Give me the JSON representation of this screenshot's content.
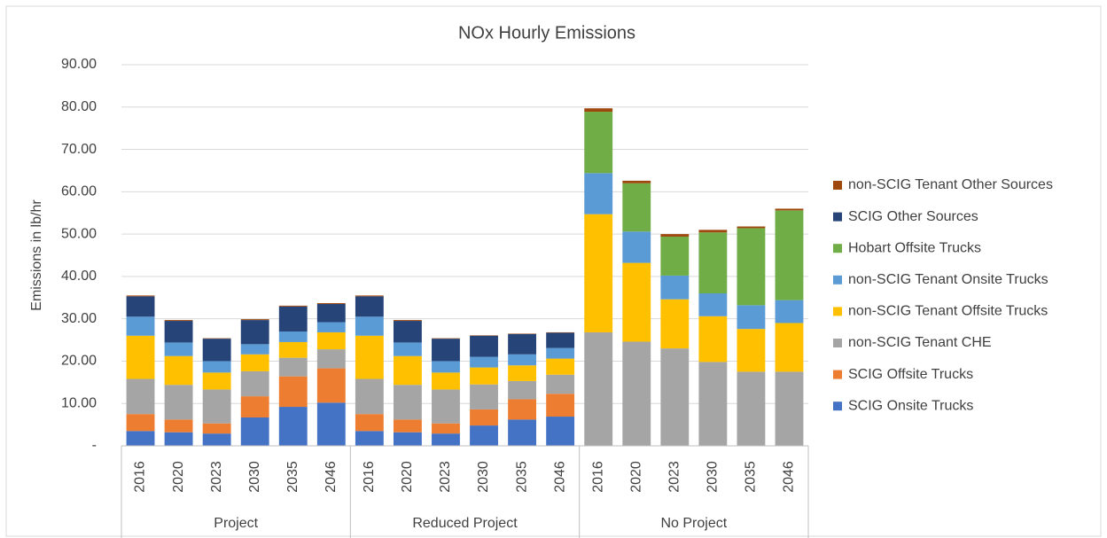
{
  "chart_data": {
    "type": "stacked_bar",
    "title": "NOx Hourly Emissions",
    "y_label": "Emissions in lb/hr",
    "categories": [
      "2016",
      "2020",
      "2023",
      "2030",
      "2035",
      "2046",
      "2016",
      "2020",
      "2023",
      "2030",
      "2035",
      "2046",
      "2016",
      "2020",
      "2023",
      "2030",
      "2035",
      "2046"
    ],
    "groups": [
      "Project",
      "Reduced Project",
      "No Project"
    ],
    "ylim": [
      0,
      90
    ],
    "yticks": [
      {
        "value": 0,
        "label": "-"
      },
      {
        "value": 10,
        "label": "10.00"
      },
      {
        "value": 20,
        "label": "20.00"
      },
      {
        "value": 30,
        "label": "30.00"
      },
      {
        "value": 40,
        "label": "40.00"
      },
      {
        "value": 50,
        "label": "50.00"
      },
      {
        "value": 60,
        "label": "60.00"
      },
      {
        "value": 70,
        "label": "70.00"
      },
      {
        "value": 80,
        "label": "80.00"
      },
      {
        "value": 90,
        "label": "90.00"
      }
    ],
    "grid": true,
    "legend": "right",
    "series": [
      {
        "name": "SCIG Onsite Trucks",
        "color": "#4472c4",
        "values": [
          3.5,
          3.2,
          2.9,
          6.7,
          9.2,
          10.2,
          3.5,
          3.2,
          2.9,
          4.8,
          6.2,
          6.9,
          0,
          0,
          0,
          0,
          0,
          0
        ]
      },
      {
        "name": "SCIG Offsite Trucks",
        "color": "#ed7d31",
        "values": [
          4.0,
          3.0,
          2.4,
          5.0,
          7.2,
          8.1,
          4.0,
          3.0,
          2.4,
          3.8,
          4.8,
          5.4,
          0,
          0,
          0,
          0,
          0,
          0
        ]
      },
      {
        "name": "non-SCIG Tenant CHE",
        "color": "#a5a5a5",
        "values": [
          8.3,
          8.2,
          8.0,
          5.9,
          4.4,
          4.5,
          8.3,
          8.2,
          8.0,
          5.9,
          4.3,
          4.5,
          26.8,
          24.6,
          23.0,
          19.8,
          17.5,
          17.5
        ]
      },
      {
        "name": "non-SCIG Tenant Offsite Trucks",
        "color": "#ffc000",
        "values": [
          10.2,
          6.8,
          4.0,
          4.0,
          3.7,
          4.0,
          10.2,
          6.8,
          4.0,
          4.0,
          3.7,
          3.8,
          27.9,
          18.6,
          11.6,
          10.8,
          10.1,
          11.5
        ]
      },
      {
        "name": "non-SCIG Tenant Onsite Trucks",
        "color": "#5b9bd5",
        "values": [
          4.5,
          3.2,
          2.7,
          2.4,
          2.5,
          2.4,
          4.5,
          3.2,
          2.7,
          2.5,
          2.6,
          2.5,
          9.7,
          7.4,
          5.6,
          5.4,
          5.6,
          5.4
        ]
      },
      {
        "name": "Hobart Offsite Trucks",
        "color": "#70ad47",
        "values": [
          0,
          0,
          0,
          0,
          0,
          0,
          0,
          0,
          0,
          0,
          0,
          0,
          14.5,
          11.4,
          9.2,
          14.4,
          18.2,
          21.2
        ]
      },
      {
        "name": "SCIG Other Sources",
        "color": "#264478",
        "values": [
          4.8,
          5.1,
          5.3,
          5.7,
          5.9,
          4.3,
          4.8,
          5.1,
          5.3,
          5.0,
          4.8,
          3.6,
          0,
          0,
          0,
          0,
          0,
          0
        ]
      },
      {
        "name": "non-SCIG Tenant Other Sources",
        "color": "#9e480e",
        "values": [
          0.2,
          0.2,
          0.1,
          0.2,
          0.2,
          0.2,
          0.2,
          0.2,
          0.1,
          0.1,
          0.1,
          0.1,
          0.8,
          0.6,
          0.6,
          0.6,
          0.4,
          0.4
        ]
      }
    ]
  }
}
